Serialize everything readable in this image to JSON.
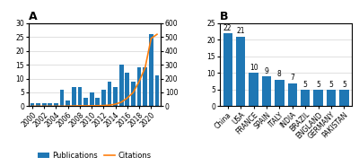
{
  "chart_data": [
    {
      "type": "bar",
      "title": "A",
      "categories": [
        "2000",
        null,
        "2002",
        null,
        "2004",
        null,
        "2006",
        null,
        "2008",
        null,
        "2010",
        null,
        "2012",
        null,
        "2014",
        null,
        "2016",
        null,
        "2018",
        null,
        "2020",
        null
      ],
      "series": [
        {
          "name": "Publications",
          "type": "bar",
          "values": [
            1,
            1,
            1,
            1,
            1,
            6,
            2,
            7,
            7,
            3,
            5,
            3,
            6,
            9,
            7,
            15,
            12,
            9,
            14,
            14,
            26,
            11
          ]
        },
        {
          "name": "Citations",
          "type": "line",
          "axis": "y2",
          "values": [
            0,
            0,
            0,
            0,
            0,
            0,
            1,
            2,
            3,
            3,
            3,
            4,
            5,
            8,
            15,
            30,
            60,
            100,
            180,
            280,
            490,
            520
          ]
        }
      ],
      "ylim": [
        0,
        30
      ],
      "yticks": [
        0,
        5,
        10,
        15,
        20,
        25,
        30
      ],
      "y2lim": [
        0,
        600
      ],
      "y2ticks": [
        0,
        100,
        200,
        300,
        400,
        500,
        600
      ],
      "grid": true,
      "legend": "lower center"
    },
    {
      "type": "bar",
      "title": "B",
      "categories": [
        "China",
        "USA",
        "FRANCE",
        "SPAIN",
        "ITALY",
        "INDIA",
        "BRAZIL",
        "ENGLAND",
        "GERMANY",
        "PAKISTAN"
      ],
      "values": [
        22,
        21,
        10,
        9,
        8,
        7,
        5,
        5,
        5,
        5
      ],
      "ylim": [
        0,
        25
      ],
      "yticks": [
        0,
        5,
        10,
        15,
        20,
        25
      ],
      "grid": true,
      "data_labels": true
    }
  ]
}
